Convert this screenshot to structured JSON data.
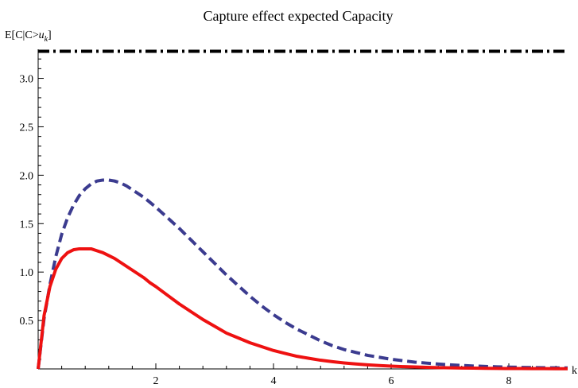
{
  "chart_data": {
    "type": "line",
    "title": "Capture effect expected Capacity",
    "ylabel_main": "E[C|C>",
    "ylabel_var": "u",
    "ylabel_sub": "k",
    "ylabel_end": "]",
    "xlabel": "k",
    "xlim": [
      0,
      9
    ],
    "ylim": [
      0,
      3.3
    ],
    "xticks": [
      2,
      4,
      6,
      8
    ],
    "yticks": [
      0.5,
      1.0,
      1.5,
      2.0,
      2.5,
      3.0
    ],
    "xtick_labels": [
      "2",
      "4",
      "6",
      "8"
    ],
    "ytick_labels": [
      "0.5",
      "1.0",
      "1.5",
      "2.0",
      "2.5",
      "3.0"
    ],
    "grid": false,
    "series": [
      {
        "style": "dash-dot",
        "color": "#000000",
        "x": [
          0,
          9
        ],
        "y": [
          3.28,
          3.28
        ]
      },
      {
        "style": "dashed",
        "color": "#3b3b8f",
        "x": [
          0,
          0.1,
          0.2,
          0.3,
          0.4,
          0.5,
          0.6,
          0.7,
          0.8,
          0.9,
          1.0,
          1.1,
          1.2,
          1.3,
          1.4,
          1.5,
          1.6,
          1.7,
          1.8,
          1.9,
          2.0,
          2.2,
          2.4,
          2.6,
          2.8,
          3.0,
          3.2,
          3.4,
          3.6,
          3.8,
          4.0,
          4.2,
          4.4,
          4.6,
          4.8,
          5.0,
          5.2,
          5.4,
          5.6,
          5.8,
          6.0,
          6.2,
          6.4,
          6.6,
          6.8,
          7.0,
          7.2,
          7.4,
          7.6,
          7.8,
          8.0,
          8.2,
          8.4,
          8.6,
          8.8,
          9.0
        ],
        "y": [
          0,
          0.52,
          0.87,
          1.16,
          1.39,
          1.56,
          1.69,
          1.79,
          1.86,
          1.91,
          1.94,
          1.95,
          1.95,
          1.94,
          1.92,
          1.89,
          1.85,
          1.81,
          1.77,
          1.72,
          1.67,
          1.56,
          1.45,
          1.33,
          1.21,
          1.09,
          0.97,
          0.86,
          0.75,
          0.65,
          0.56,
          0.48,
          0.41,
          0.35,
          0.29,
          0.24,
          0.2,
          0.17,
          0.14,
          0.12,
          0.1,
          0.085,
          0.07,
          0.06,
          0.05,
          0.042,
          0.036,
          0.03,
          0.026,
          0.022,
          0.019,
          0.016,
          0.014,
          0.012,
          0.011,
          0.01
        ]
      },
      {
        "style": "solid",
        "color": "#ee1111",
        "x": [
          0,
          0.1,
          0.2,
          0.3,
          0.4,
          0.5,
          0.6,
          0.7,
          0.8,
          0.9,
          1.0,
          1.1,
          1.2,
          1.3,
          1.4,
          1.5,
          1.6,
          1.7,
          1.8,
          1.9,
          2.0,
          2.2,
          2.4,
          2.6,
          2.8,
          3.0,
          3.2,
          3.4,
          3.6,
          3.8,
          4.0,
          4.2,
          4.4,
          4.6,
          4.8,
          5.0,
          5.2,
          5.4,
          5.6,
          5.8,
          6.0,
          6.2,
          6.4,
          6.6,
          6.8,
          7.0,
          7.2,
          7.4,
          7.6,
          7.8,
          8.0,
          8.2,
          8.4,
          8.6,
          8.8,
          9.0
        ],
        "y": [
          0,
          0.55,
          0.85,
          1.03,
          1.14,
          1.2,
          1.23,
          1.24,
          1.24,
          1.24,
          1.22,
          1.2,
          1.17,
          1.14,
          1.1,
          1.06,
          1.02,
          0.98,
          0.94,
          0.89,
          0.85,
          0.76,
          0.67,
          0.59,
          0.51,
          0.44,
          0.37,
          0.32,
          0.27,
          0.23,
          0.19,
          0.16,
          0.13,
          0.11,
          0.09,
          0.075,
          0.062,
          0.051,
          0.042,
          0.035,
          0.029,
          0.024,
          0.02,
          0.016,
          0.013,
          0.011,
          0.009,
          0.008,
          0.006,
          0.005,
          0.004,
          0.004,
          0.003,
          0.003,
          0.002,
          0.002
        ]
      }
    ]
  }
}
